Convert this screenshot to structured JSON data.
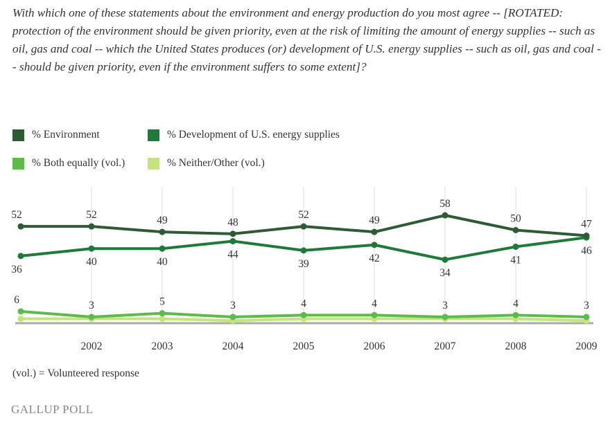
{
  "question": "With which one of these statements about the environment and energy production do you most agree -- [ROTATED: protection of the environment should be given priority, even at the risk of limiting the amount of energy supplies -- such as oil, gas and coal -- which the United States produces (or) development of U.S. energy supplies -- such as oil, gas and coal -- should be given priority, even if the environment suffers to some extent]?",
  "note": "(vol.) = Volunteered response",
  "logo": "GALLUP POLL",
  "chart_data": {
    "type": "line",
    "x": [
      "2001",
      "2002",
      "2003",
      "2004",
      "2005",
      "2006",
      "2007",
      "2008",
      "2009"
    ],
    "tick_labels": [
      "",
      "2002",
      "2003",
      "2004",
      "2005",
      "2006",
      "2007",
      "2008",
      "2009"
    ],
    "ylim": [
      0,
      60
    ],
    "grid": "vertical",
    "legend": "top",
    "series": [
      {
        "name": "% Environment",
        "color": "#2e5a36",
        "values": [
          52,
          52,
          49,
          48,
          52,
          49,
          58,
          50,
          47
        ],
        "labels": true,
        "label_pos": "above"
      },
      {
        "name": "% Development of U.S. energy supplies",
        "color": "#1f7a3a",
        "values": [
          36,
          40,
          40,
          44,
          39,
          42,
          34,
          41,
          46
        ],
        "labels": true,
        "label_pos": "below"
      },
      {
        "name": "% Both equally (vol.)",
        "color": "#5dbb4c",
        "values": [
          6,
          3,
          5,
          3,
          4,
          4,
          3,
          4,
          3
        ],
        "labels": true,
        "label_pos": "above"
      },
      {
        "name": "% Neither/Other (vol.)",
        "color": "#c4e47c",
        "values": [
          2,
          2,
          2,
          1,
          2,
          2,
          2,
          2,
          1
        ],
        "labels": false
      }
    ]
  }
}
